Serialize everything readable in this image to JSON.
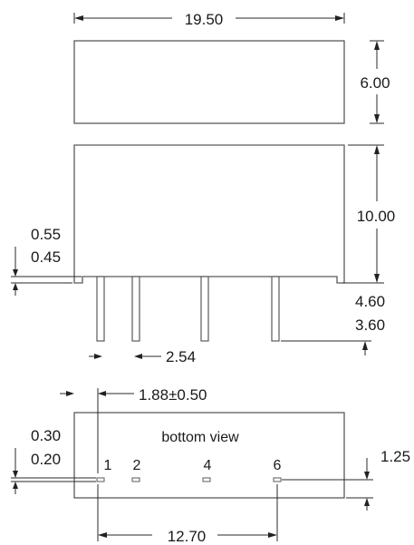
{
  "top_view": {
    "width_label": "19.50",
    "depth_label": "6.00"
  },
  "side_view": {
    "height_label": "10.00",
    "standoff_max": "0.55",
    "standoff_min": "0.45",
    "pin_length_max": "4.60",
    "pin_length_min": "3.60",
    "pin_pitch": "2.54"
  },
  "bottom_view": {
    "title": "bottom view",
    "pin_offset": "1.88±0.50",
    "pad_size_max": "0.30",
    "pad_size_min": "0.20",
    "edge_offset": "1.25",
    "pin_span": "12.70",
    "pins": [
      "1",
      "2",
      "4",
      "6"
    ]
  }
}
